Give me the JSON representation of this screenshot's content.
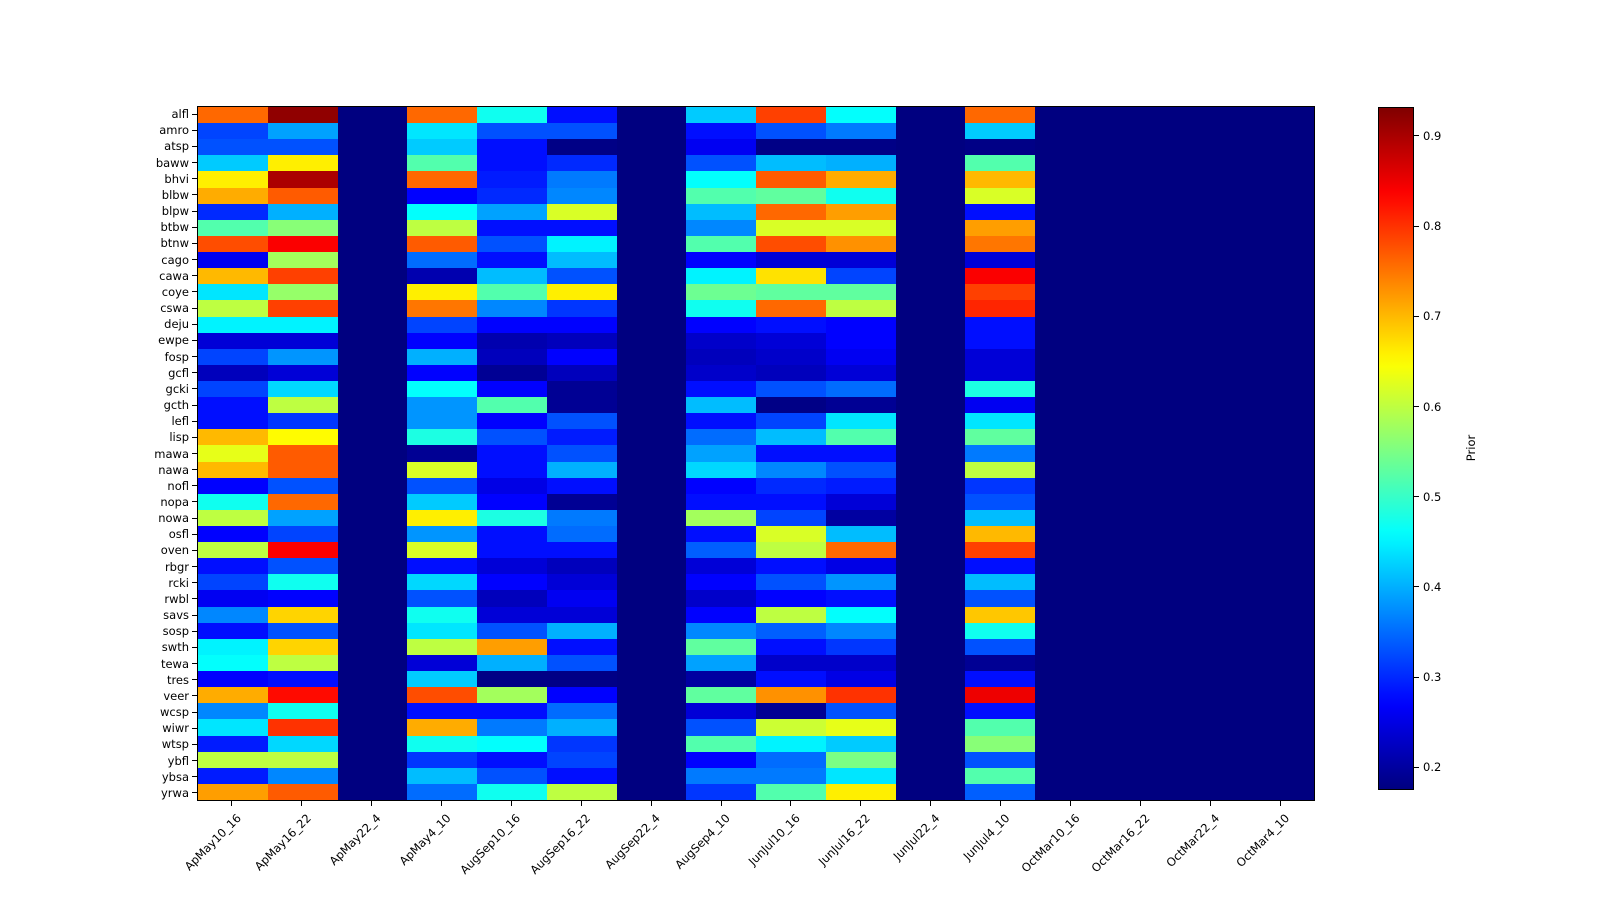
{
  "figure": {
    "background": "#ffffff"
  },
  "chart_data": {
    "type": "heatmap",
    "title": "",
    "xlabel": "",
    "ylabel": "",
    "colormap": "jet",
    "grid": false,
    "colorbar": {
      "label": "Prior",
      "vmin": 0.175,
      "vmax": 0.932,
      "ticks": [
        0.9,
        0.8,
        0.7,
        0.6,
        0.5,
        0.4,
        0.3,
        0.2
      ]
    },
    "x_categories": [
      "ApMay10_16",
      "ApMay16_22",
      "ApMay22_4",
      "ApMay4_10",
      "AugSep10_16",
      "AugSep16_22",
      "AugSep22_4",
      "AugSep4_10",
      "JunJul10_16",
      "JunJul16_22",
      "JunJul22_4",
      "JunJul4_10",
      "OctMar10_16",
      "OctMar16_22",
      "OctMar22_4",
      "OctMar4_10"
    ],
    "y_categories": [
      "alfl",
      "amro",
      "atsp",
      "baww",
      "bhvi",
      "blbw",
      "blpw",
      "btbw",
      "btnw",
      "cago",
      "cawa",
      "coye",
      "cswa",
      "deju",
      "ewpe",
      "fosp",
      "gcfl",
      "gcki",
      "gcth",
      "lefl",
      "lisp",
      "mawa",
      "nawa",
      "nofl",
      "nopa",
      "nowa",
      "osfl",
      "oven",
      "rbgr",
      "rcki",
      "rwbl",
      "savs",
      "sosp",
      "swth",
      "tewa",
      "tres",
      "veer",
      "wcsp",
      "wiwr",
      "wtsp",
      "ybfl",
      "ybsa",
      "yrwa"
    ],
    "values": [
      [
        0.76,
        0.92,
        0.175,
        0.76,
        0.47,
        0.28,
        0.175,
        0.42,
        0.79,
        0.46,
        0.175,
        0.76,
        0.175,
        0.175,
        0.175,
        0.175
      ],
      [
        0.32,
        0.39,
        0.175,
        0.44,
        0.33,
        0.33,
        0.175,
        0.28,
        0.33,
        0.36,
        0.175,
        0.42,
        0.175,
        0.175,
        0.175,
        0.175
      ],
      [
        0.33,
        0.33,
        0.175,
        0.42,
        0.28,
        0.18,
        0.175,
        0.26,
        0.18,
        0.18,
        0.175,
        0.18,
        0.175,
        0.175,
        0.175,
        0.175
      ],
      [
        0.42,
        0.66,
        0.175,
        0.52,
        0.28,
        0.3,
        0.175,
        0.33,
        0.41,
        0.4,
        0.175,
        0.52,
        0.175,
        0.175,
        0.175,
        0.175
      ],
      [
        0.66,
        0.9,
        0.175,
        0.76,
        0.29,
        0.36,
        0.175,
        0.46,
        0.77,
        0.71,
        0.175,
        0.7,
        0.175,
        0.175,
        0.175,
        0.175
      ],
      [
        0.71,
        0.77,
        0.175,
        0.27,
        0.3,
        0.37,
        0.175,
        0.52,
        0.53,
        0.47,
        0.175,
        0.62,
        0.175,
        0.175,
        0.175,
        0.175
      ],
      [
        0.3,
        0.4,
        0.175,
        0.46,
        0.39,
        0.62,
        0.175,
        0.41,
        0.76,
        0.72,
        0.175,
        0.28,
        0.175,
        0.175,
        0.175,
        0.175
      ],
      [
        0.52,
        0.56,
        0.175,
        0.6,
        0.28,
        0.28,
        0.175,
        0.37,
        0.62,
        0.62,
        0.175,
        0.72,
        0.175,
        0.175,
        0.175,
        0.175
      ],
      [
        0.78,
        0.84,
        0.175,
        0.77,
        0.33,
        0.45,
        0.175,
        0.52,
        0.78,
        0.73,
        0.175,
        0.75,
        0.175,
        0.175,
        0.175,
        0.175
      ],
      [
        0.26,
        0.58,
        0.175,
        0.35,
        0.28,
        0.41,
        0.175,
        0.27,
        0.24,
        0.24,
        0.175,
        0.24,
        0.175,
        0.175,
        0.175,
        0.175
      ],
      [
        0.7,
        0.79,
        0.175,
        0.21,
        0.41,
        0.33,
        0.175,
        0.45,
        0.67,
        0.32,
        0.175,
        0.84,
        0.175,
        0.175,
        0.175,
        0.175
      ],
      [
        0.44,
        0.57,
        0.175,
        0.66,
        0.52,
        0.66,
        0.175,
        0.54,
        0.53,
        0.53,
        0.175,
        0.79,
        0.175,
        0.175,
        0.175,
        0.175
      ],
      [
        0.6,
        0.79,
        0.175,
        0.75,
        0.37,
        0.31,
        0.175,
        0.47,
        0.76,
        0.6,
        0.175,
        0.81,
        0.175,
        0.175,
        0.175,
        0.175
      ],
      [
        0.45,
        0.45,
        0.175,
        0.32,
        0.27,
        0.27,
        0.175,
        0.27,
        0.28,
        0.27,
        0.175,
        0.28,
        0.175,
        0.175,
        0.175,
        0.175
      ],
      [
        0.24,
        0.24,
        0.175,
        0.27,
        0.21,
        0.22,
        0.175,
        0.23,
        0.24,
        0.27,
        0.175,
        0.28,
        0.175,
        0.175,
        0.175,
        0.175
      ],
      [
        0.32,
        0.38,
        0.175,
        0.4,
        0.22,
        0.27,
        0.175,
        0.22,
        0.23,
        0.26,
        0.175,
        0.24,
        0.175,
        0.175,
        0.175,
        0.175
      ],
      [
        0.22,
        0.24,
        0.175,
        0.27,
        0.19,
        0.22,
        0.175,
        0.23,
        0.22,
        0.24,
        0.175,
        0.24,
        0.175,
        0.175,
        0.175,
        0.175
      ],
      [
        0.32,
        0.43,
        0.175,
        0.46,
        0.27,
        0.19,
        0.175,
        0.28,
        0.33,
        0.35,
        0.175,
        0.48,
        0.175,
        0.175,
        0.175,
        0.175
      ],
      [
        0.28,
        0.6,
        0.175,
        0.38,
        0.52,
        0.19,
        0.175,
        0.41,
        0.18,
        0.19,
        0.175,
        0.26,
        0.175,
        0.175,
        0.175,
        0.175
      ],
      [
        0.28,
        0.31,
        0.175,
        0.38,
        0.27,
        0.33,
        0.175,
        0.28,
        0.32,
        0.44,
        0.175,
        0.44,
        0.175,
        0.175,
        0.175,
        0.175
      ],
      [
        0.7,
        0.65,
        0.175,
        0.48,
        0.33,
        0.29,
        0.175,
        0.35,
        0.41,
        0.52,
        0.175,
        0.53,
        0.175,
        0.175,
        0.175,
        0.175
      ],
      [
        0.63,
        0.77,
        0.175,
        0.19,
        0.28,
        0.33,
        0.175,
        0.39,
        0.28,
        0.28,
        0.175,
        0.36,
        0.175,
        0.175,
        0.175,
        0.175
      ],
      [
        0.7,
        0.77,
        0.175,
        0.62,
        0.28,
        0.4,
        0.175,
        0.43,
        0.37,
        0.33,
        0.175,
        0.6,
        0.175,
        0.175,
        0.175,
        0.175
      ],
      [
        0.27,
        0.33,
        0.175,
        0.33,
        0.25,
        0.28,
        0.175,
        0.27,
        0.3,
        0.29,
        0.175,
        0.31,
        0.175,
        0.175,
        0.175,
        0.175
      ],
      [
        0.47,
        0.76,
        0.175,
        0.42,
        0.27,
        0.19,
        0.175,
        0.28,
        0.28,
        0.24,
        0.175,
        0.33,
        0.175,
        0.175,
        0.175,
        0.175
      ],
      [
        0.6,
        0.39,
        0.175,
        0.66,
        0.48,
        0.36,
        0.175,
        0.58,
        0.32,
        0.2,
        0.175,
        0.41,
        0.175,
        0.175,
        0.175,
        0.175
      ],
      [
        0.27,
        0.32,
        0.175,
        0.38,
        0.28,
        0.35,
        0.175,
        0.28,
        0.62,
        0.41,
        0.175,
        0.7,
        0.175,
        0.175,
        0.175,
        0.175
      ],
      [
        0.6,
        0.84,
        0.175,
        0.62,
        0.28,
        0.28,
        0.175,
        0.34,
        0.6,
        0.76,
        0.175,
        0.79,
        0.175,
        0.175,
        0.175,
        0.175
      ],
      [
        0.28,
        0.33,
        0.175,
        0.28,
        0.24,
        0.22,
        0.175,
        0.24,
        0.28,
        0.25,
        0.175,
        0.28,
        0.175,
        0.175,
        0.175,
        0.175
      ],
      [
        0.32,
        0.47,
        0.175,
        0.43,
        0.27,
        0.24,
        0.175,
        0.27,
        0.33,
        0.38,
        0.175,
        0.41,
        0.175,
        0.175,
        0.175,
        0.175
      ],
      [
        0.26,
        0.27,
        0.175,
        0.33,
        0.22,
        0.26,
        0.175,
        0.23,
        0.27,
        0.28,
        0.175,
        0.33,
        0.175,
        0.175,
        0.175,
        0.175
      ],
      [
        0.37,
        0.68,
        0.175,
        0.47,
        0.24,
        0.24,
        0.175,
        0.27,
        0.6,
        0.46,
        0.175,
        0.69,
        0.175,
        0.175,
        0.175,
        0.175
      ],
      [
        0.28,
        0.33,
        0.175,
        0.44,
        0.33,
        0.4,
        0.175,
        0.37,
        0.34,
        0.37,
        0.175,
        0.47,
        0.175,
        0.175,
        0.175,
        0.175
      ],
      [
        0.45,
        0.68,
        0.175,
        0.6,
        0.72,
        0.28,
        0.175,
        0.53,
        0.28,
        0.31,
        0.175,
        0.33,
        0.175,
        0.175,
        0.175,
        0.175
      ],
      [
        0.46,
        0.6,
        0.175,
        0.24,
        0.4,
        0.33,
        0.175,
        0.39,
        0.23,
        0.23,
        0.175,
        0.19,
        0.175,
        0.175,
        0.175,
        0.175
      ],
      [
        0.27,
        0.28,
        0.175,
        0.42,
        0.18,
        0.18,
        0.175,
        0.2,
        0.28,
        0.25,
        0.175,
        0.28,
        0.175,
        0.175,
        0.175,
        0.175
      ],
      [
        0.71,
        0.83,
        0.175,
        0.78,
        0.58,
        0.27,
        0.175,
        0.53,
        0.73,
        0.8,
        0.175,
        0.85,
        0.175,
        0.175,
        0.175,
        0.175
      ],
      [
        0.37,
        0.47,
        0.175,
        0.28,
        0.28,
        0.35,
        0.175,
        0.24,
        0.19,
        0.33,
        0.175,
        0.28,
        0.175,
        0.175,
        0.175,
        0.175
      ],
      [
        0.44,
        0.8,
        0.175,
        0.71,
        0.36,
        0.4,
        0.175,
        0.33,
        0.61,
        0.63,
        0.175,
        0.52,
        0.175,
        0.175,
        0.175,
        0.175
      ],
      [
        0.29,
        0.43,
        0.175,
        0.47,
        0.46,
        0.31,
        0.175,
        0.52,
        0.45,
        0.42,
        0.175,
        0.56,
        0.175,
        0.175,
        0.175,
        0.175
      ],
      [
        0.6,
        0.6,
        0.175,
        0.31,
        0.28,
        0.32,
        0.175,
        0.27,
        0.35,
        0.55,
        0.175,
        0.33,
        0.175,
        0.175,
        0.175,
        0.175
      ],
      [
        0.29,
        0.37,
        0.175,
        0.41,
        0.33,
        0.28,
        0.175,
        0.36,
        0.36,
        0.44,
        0.175,
        0.52,
        0.175,
        0.175,
        0.175,
        0.175
      ],
      [
        0.72,
        0.77,
        0.175,
        0.35,
        0.47,
        0.6,
        0.175,
        0.31,
        0.52,
        0.66,
        0.175,
        0.34,
        0.175,
        0.175,
        0.175,
        0.175
      ]
    ]
  }
}
